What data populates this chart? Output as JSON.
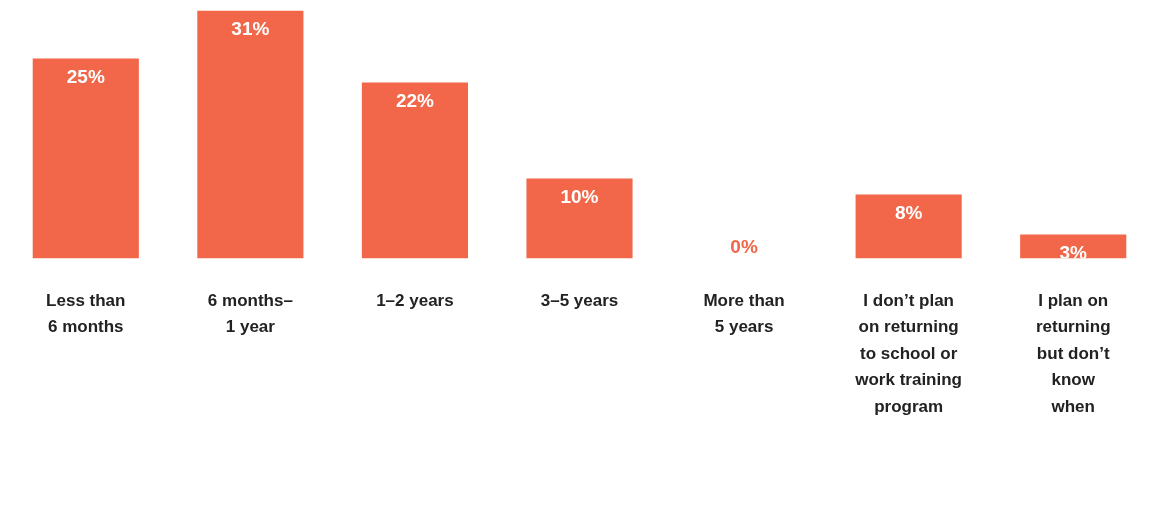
{
  "chart_data": {
    "type": "bar",
    "categories": [
      "Less than\n6 months",
      "6 months–\n1 year",
      "1–2 years",
      "3–5 years",
      "More than\n5 years",
      "I don’t plan\non returning\nto school or\nwork training\nprogram",
      "I plan on\nreturning\nbut don’t\nknow\nwhen"
    ],
    "values": [
      25,
      31,
      22,
      10,
      0,
      8,
      3
    ],
    "value_labels": [
      "25%",
      "31%",
      "22%",
      "10%",
      "0%",
      "8%",
      "3%"
    ],
    "color": "#f26749",
    "grid": false
  }
}
